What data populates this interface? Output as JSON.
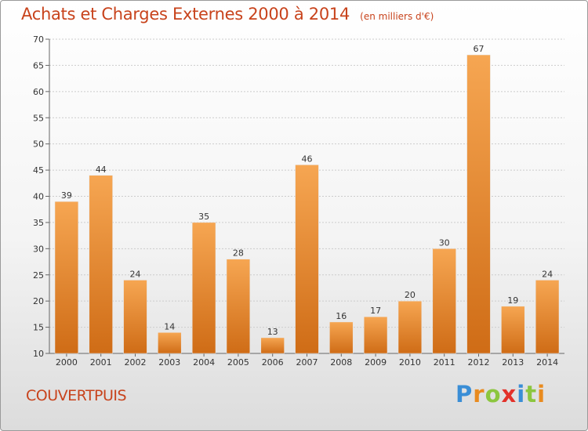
{
  "title": "Achats et Charges Externes 2000 à 2014",
  "subtitle": "(en milliers d'€)",
  "commune": "COUVERTPUIS",
  "brand": "Proxiti",
  "colors": {
    "title": "#c8431c",
    "bar_top": "#f6a652",
    "bar_bottom": "#cf6c16",
    "grid": "#cccccc"
  },
  "chart_data": {
    "type": "bar",
    "categories": [
      "2000",
      "2001",
      "2002",
      "2003",
      "2004",
      "2005",
      "2006",
      "2007",
      "2008",
      "2009",
      "2010",
      "2011",
      "2012",
      "2013",
      "2014"
    ],
    "values": [
      39,
      44,
      24,
      14,
      35,
      28,
      13,
      46,
      16,
      17,
      20,
      30,
      67,
      19,
      24
    ],
    "ylim": [
      10,
      70
    ],
    "yticks": [
      10,
      15,
      20,
      25,
      30,
      35,
      40,
      45,
      50,
      55,
      60,
      65,
      70
    ],
    "grid": true,
    "data_labels": true
  }
}
